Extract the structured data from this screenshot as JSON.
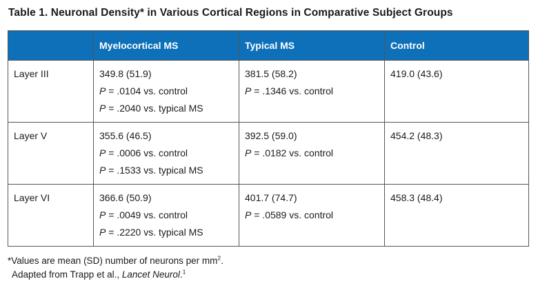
{
  "title": "Table 1. Neuronal Density* in Various Cortical Regions in Comparative Subject Groups",
  "headers": [
    "",
    "Myelocortical MS",
    "Typical MS",
    "Control"
  ],
  "rows": [
    {
      "layer": "Layer III",
      "myelocortical": {
        "value": "349.8 (51.9)",
        "p1": "= .0104 vs. control",
        "p2": "= .2040 vs. typical MS"
      },
      "typical": {
        "value": "381.5 (58.2)",
        "p1": "= .1346 vs. control"
      },
      "control": {
        "value": "419.0 (43.6)"
      }
    },
    {
      "layer": "Layer V",
      "myelocortical": {
        "value": "355.6 (46.5)",
        "p1": "= .0006 vs. control",
        "p2": "= .1533 vs. typical MS"
      },
      "typical": {
        "value": "392.5 (59.0)",
        "p1": "= .0182 vs. control"
      },
      "control": {
        "value": "454.2 (48.3)"
      }
    },
    {
      "layer": "Layer VI",
      "myelocortical": {
        "value": "366.6 (50.9)",
        "p1": "= .0049 vs. control",
        "p2": "= .2220 vs. typical MS"
      },
      "typical": {
        "value": "401.7 (74.7)",
        "p1": "= .0589 vs. control"
      },
      "control": {
        "value": "458.3 (48.4)"
      }
    }
  ],
  "p_symbol": "P",
  "footnote": {
    "line1_prefix": "*Values are mean (SD) number of neurons per mm",
    "line1_sup": "2",
    "line1_suffix": ".",
    "line2_prefix": "Adapted from Trapp et al., ",
    "line2_italic": "Lancet Neurol",
    "line2_suffix": ".",
    "line2_sup": "1"
  },
  "colors": {
    "header_bg": "#0d70b8",
    "header_text": "#ffffff",
    "border": "#555555"
  }
}
